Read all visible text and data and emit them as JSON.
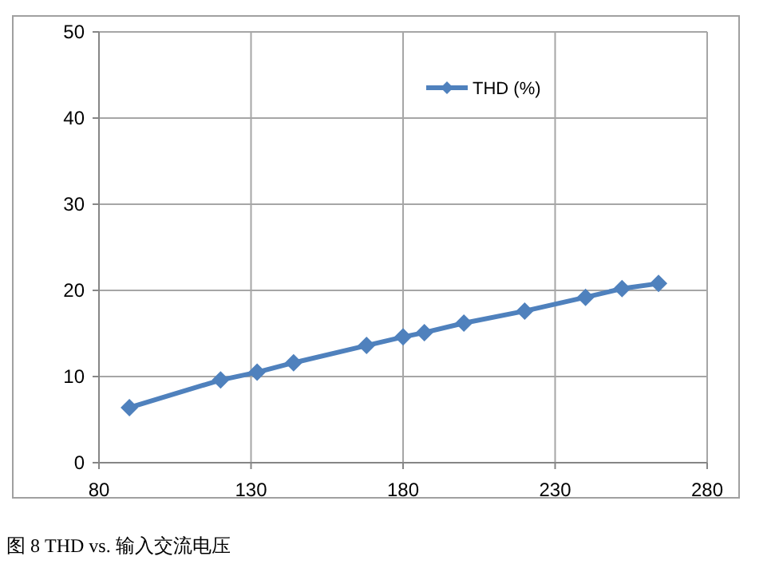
{
  "chart_data": {
    "type": "line",
    "annotations": [
      "图 8 THD vs. 输入交流电压"
    ],
    "x": [
      90,
      120,
      132,
      144,
      168,
      180,
      187,
      200,
      220,
      240,
      252,
      264
    ],
    "series": [
      {
        "name": "THD (%)",
        "color": "#4f81bd",
        "values": [
          6.4,
          9.6,
          10.5,
          11.6,
          13.6,
          14.6,
          15.1,
          16.2,
          17.6,
          19.2,
          20.2,
          20.8
        ]
      }
    ],
    "xlim": [
      80,
      280
    ],
    "xticks": [
      80,
      130,
      180,
      230,
      280
    ],
    "ylim": [
      0,
      50
    ],
    "yticks": [
      0,
      10,
      20,
      30,
      40,
      50
    ],
    "grid": true,
    "legend": "top right",
    "marker": "diamond",
    "line_style": "solid"
  }
}
